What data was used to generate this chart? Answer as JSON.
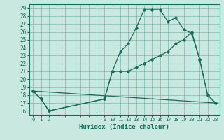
{
  "xlabel": "Humidex (Indice chaleur)",
  "bg_color": "#c8e8e0",
  "grid_color": "#7ab8b0",
  "line_color": "#1a6b5a",
  "ylim": [
    15.5,
    29.5
  ],
  "yticks": [
    16,
    17,
    18,
    19,
    20,
    21,
    22,
    23,
    24,
    25,
    26,
    27,
    28,
    29
  ],
  "xticks": [
    0,
    1,
    2,
    9,
    10,
    11,
    12,
    13,
    14,
    15,
    16,
    17,
    18,
    19,
    20,
    21,
    22,
    23
  ],
  "xlim": [
    -0.5,
    23.5
  ],
  "series1_x": [
    0,
    1,
    2,
    9,
    10,
    11,
    12,
    13,
    14,
    15,
    16,
    17,
    18,
    19,
    20,
    21,
    22,
    23
  ],
  "series1_y": [
    18.5,
    17.5,
    16.0,
    17.5,
    21.0,
    23.5,
    24.5,
    26.5,
    28.8,
    28.8,
    28.8,
    27.3,
    27.8,
    26.3,
    25.8,
    22.5,
    18.0,
    17.0
  ],
  "series2_x": [
    0,
    1,
    2,
    9,
    10,
    11,
    12,
    13,
    14,
    15,
    16,
    17,
    18,
    19,
    20,
    21,
    22,
    23
  ],
  "series2_y": [
    18.5,
    17.5,
    16.0,
    17.5,
    21.0,
    21.0,
    21.0,
    21.5,
    22.0,
    22.5,
    23.0,
    23.5,
    24.5,
    25.0,
    26.0,
    22.5,
    18.0,
    17.0
  ],
  "series3_x": [
    0,
    23
  ],
  "series3_y": [
    18.5,
    17.0
  ]
}
